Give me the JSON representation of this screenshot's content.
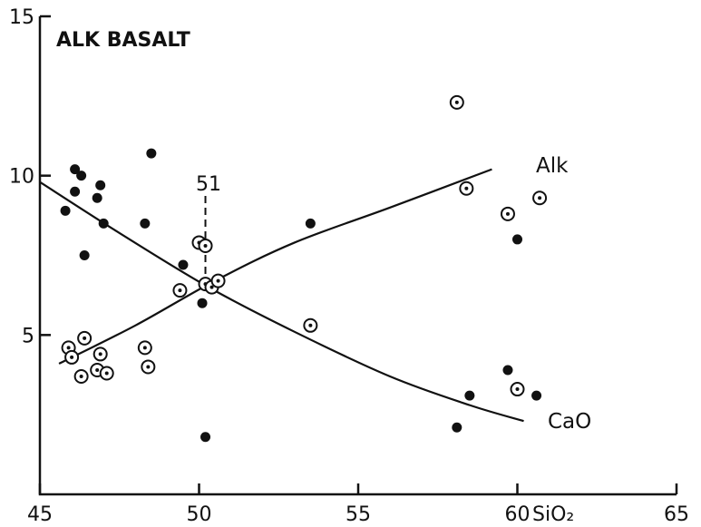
{
  "chart_data": {
    "type": "scatter",
    "title": "ALK BASALT",
    "xlabel": "SiO₂",
    "ylabel": "",
    "xlim": [
      45,
      65
    ],
    "ylim": [
      0,
      15
    ],
    "x_ticks": [
      45,
      50,
      55,
      60,
      65
    ],
    "y_ticks": [
      5,
      10,
      15
    ],
    "grid": false,
    "annotation": {
      "text": "51",
      "x": 50.2
    },
    "series": [
      {
        "name": "CaO",
        "marker": "filled-circle",
        "points": [
          [
            45.8,
            8.9
          ],
          [
            46.1,
            10.2
          ],
          [
            46.1,
            9.5
          ],
          [
            46.3,
            10.0
          ],
          [
            46.8,
            9.3
          ],
          [
            46.9,
            9.7
          ],
          [
            47.0,
            8.5
          ],
          [
            46.4,
            7.5
          ],
          [
            48.3,
            8.5
          ],
          [
            48.5,
            10.7
          ],
          [
            49.5,
            7.2
          ],
          [
            50.1,
            6.0
          ],
          [
            50.2,
            1.8
          ],
          [
            53.5,
            8.5
          ],
          [
            58.1,
            2.1
          ],
          [
            58.5,
            3.1
          ],
          [
            59.7,
            3.9
          ],
          [
            60.0,
            8.0
          ],
          [
            60.6,
            3.1
          ]
        ]
      },
      {
        "name": "Alk",
        "marker": "dotted-circle",
        "points": [
          [
            45.9,
            4.6
          ],
          [
            46.0,
            4.3
          ],
          [
            46.4,
            4.9
          ],
          [
            46.3,
            3.7
          ],
          [
            46.8,
            3.9
          ],
          [
            46.9,
            4.4
          ],
          [
            47.1,
            3.8
          ],
          [
            48.3,
            4.6
          ],
          [
            48.4,
            4.0
          ],
          [
            49.4,
            6.4
          ],
          [
            50.0,
            7.9
          ],
          [
            50.2,
            7.8
          ],
          [
            50.2,
            6.6
          ],
          [
            50.4,
            6.5
          ],
          [
            50.6,
            6.7
          ],
          [
            53.5,
            5.3
          ],
          [
            58.1,
            12.3
          ],
          [
            58.4,
            9.6
          ],
          [
            59.7,
            8.8
          ],
          [
            60.0,
            3.3
          ],
          [
            60.7,
            9.3
          ]
        ]
      }
    ],
    "curves": [
      {
        "name": "Alk",
        "points": [
          [
            45.6,
            4.1
          ],
          [
            48.0,
            5.3
          ],
          [
            50.5,
            6.7
          ],
          [
            53.0,
            7.9
          ],
          [
            56.0,
            9.0
          ],
          [
            59.2,
            10.2
          ]
        ]
      },
      {
        "name": "CaO",
        "points": [
          [
            45.0,
            9.8
          ],
          [
            47.5,
            8.2
          ],
          [
            50.3,
            6.5
          ],
          [
            53.0,
            5.1
          ],
          [
            56.0,
            3.7
          ],
          [
            58.5,
            2.8
          ],
          [
            60.2,
            2.3
          ]
        ]
      }
    ]
  }
}
